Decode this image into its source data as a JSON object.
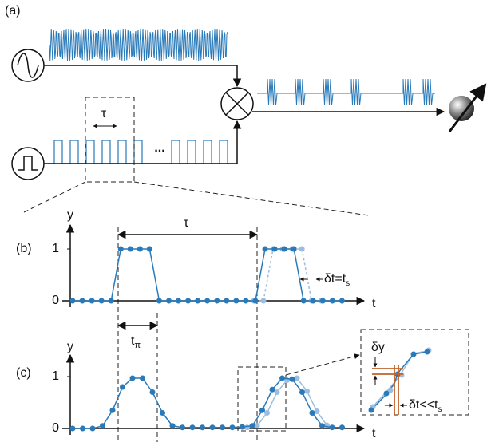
{
  "panel_a": {
    "label": "(a)",
    "tau": "τ",
    "ellipsis": "..."
  },
  "panel_b": {
    "label": "(b)",
    "y_label": "y",
    "x_label": "t",
    "yticks": [
      0,
      1
    ],
    "tau": "τ",
    "t_pi_main": "t",
    "t_pi_sub": "π",
    "delta_main": "δt=t",
    "delta_sub": "s",
    "values": [
      0,
      0,
      0,
      0,
      0,
      1,
      1,
      1,
      1,
      0,
      0,
      0,
      0,
      0,
      0,
      0,
      0,
      0,
      0,
      0,
      1,
      1,
      1,
      1,
      0,
      0,
      0,
      0,
      0
    ],
    "shifted_values": [
      0,
      0,
      1,
      1,
      1,
      1,
      0,
      0
    ]
  },
  "panel_c": {
    "label": "(c)",
    "y_label": "y",
    "x_label": "t",
    "yticks": [
      0,
      1
    ],
    "dy": "δy",
    "delta_main": "δt<<t",
    "delta_sub": "s",
    "values": [
      0,
      0,
      0,
      0.05,
      0.35,
      0.8,
      0.97,
      0.97,
      0.7,
      0.3,
      0.05,
      0.02,
      0.02,
      0.02,
      0.02,
      0.02,
      0.02,
      0.03,
      0.05,
      0.35,
      0.75,
      0.97,
      0.95,
      0.7,
      0.3,
      0.05,
      0.02,
      0.02
    ],
    "shifted_values": [
      0.02,
      0.05,
      0.3,
      0.7,
      0.93,
      0.97,
      0.72,
      0.33,
      0.06
    ]
  }
}
